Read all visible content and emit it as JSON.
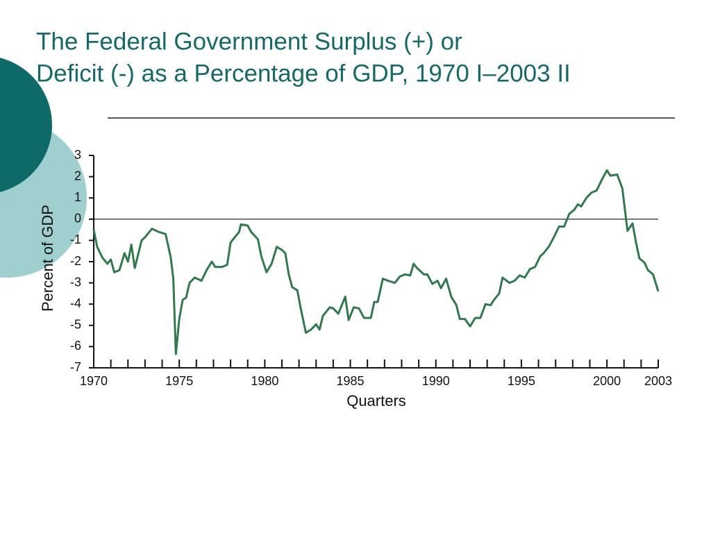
{
  "chart_data": {
    "type": "line",
    "title": [
      "The Federal Government Surplus (+) or",
      "Deficit (-) as a Percentage of GDP, 1970 I–2003 II"
    ],
    "ylabel": "Percent of GDP",
    "xlabel": "Quarters",
    "x": [
      1970,
      1970.2,
      1970.5,
      1970.8,
      1971,
      1971.2,
      1971.5,
      1971.8,
      1972,
      1972.2,
      1972.4,
      1972.8,
      1973,
      1973.4,
      1973.8,
      1974.2,
      1974.5,
      1974.65,
      1974.8,
      1975,
      1975.2,
      1975.4,
      1975.6,
      1975.9,
      1976.3,
      1976.6,
      1976.9,
      1977.1,
      1977.5,
      1977.8,
      1978,
      1978.2,
      1978.5,
      1978.6,
      1979,
      1979.2,
      1979.6,
      1979.8,
      1980.1,
      1980.4,
      1980.7,
      1981,
      1981.2,
      1981.4,
      1981.6,
      1981.9,
      1982.1,
      1982.4,
      1982.7,
      1983,
      1983.2,
      1983.4,
      1983.8,
      1984,
      1984.3,
      1984.7,
      1984.9,
      1985.2,
      1985.5,
      1985.8,
      1986.2,
      1986.4,
      1986.6,
      1986.9,
      1987.2,
      1987.6,
      1987.9,
      1988.2,
      1988.5,
      1988.7,
      1988.9,
      1989.3,
      1989.5,
      1989.8,
      1990.1,
      1990.3,
      1990.6,
      1990.9,
      1991.2,
      1991.4,
      1991.7,
      1992,
      1992.3,
      1992.6,
      1992.9,
      1993.2,
      1993.4,
      1993.7,
      1993.9,
      1994.3,
      1994.6,
      1994.9,
      1995.2,
      1995.5,
      1995.8,
      1996.1,
      1996.3,
      1996.6,
      1996.9,
      1997.2,
      1997.5,
      1997.8,
      1998.1,
      1998.3,
      1998.5,
      1998.8,
      1999.1,
      1999.4,
      1999.7,
      2000,
      2000.2,
      2000.6,
      2000.9,
      2001.2,
      2001.5,
      2001.7,
      2001.9,
      2002.2,
      2002.4,
      2002.7,
      2003
    ],
    "values": [
      -0.5,
      -1.3,
      -1.8,
      -2.1,
      -1.9,
      -2.5,
      -2.4,
      -1.6,
      -2.0,
      -1.2,
      -2.3,
      -1.0,
      -0.85,
      -0.45,
      -0.6,
      -0.7,
      -1.8,
      -2.8,
      -6.35,
      -4.7,
      -3.8,
      -3.7,
      -3.0,
      -2.75,
      -2.9,
      -2.4,
      -2.0,
      -2.25,
      -2.25,
      -2.15,
      -1.1,
      -0.9,
      -0.6,
      -0.25,
      -0.3,
      -0.6,
      -0.95,
      -1.75,
      -2.5,
      -2.1,
      -1.3,
      -1.45,
      -1.6,
      -2.6,
      -3.2,
      -3.35,
      -4.2,
      -5.35,
      -5.2,
      -4.95,
      -5.2,
      -4.55,
      -4.15,
      -4.2,
      -4.45,
      -3.65,
      -4.75,
      -4.15,
      -4.2,
      -4.65,
      -4.65,
      -3.9,
      -3.9,
      -2.8,
      -2.9,
      -3.0,
      -2.7,
      -2.6,
      -2.65,
      -2.1,
      -2.3,
      -2.6,
      -2.6,
      -3.05,
      -2.9,
      -3.25,
      -2.8,
      -3.65,
      -4.05,
      -4.7,
      -4.7,
      -5.05,
      -4.65,
      -4.65,
      -4.0,
      -4.05,
      -3.8,
      -3.5,
      -2.75,
      -3.0,
      -2.9,
      -2.65,
      -2.75,
      -2.35,
      -2.25,
      -1.75,
      -1.6,
      -1.3,
      -0.85,
      -0.35,
      -0.35,
      0.25,
      0.45,
      0.7,
      0.6,
      1.0,
      1.25,
      1.35,
      1.85,
      2.3,
      2.05,
      2.1,
      1.45,
      -0.55,
      -0.2,
      -1.1,
      -1.85,
      -2.05,
      -2.4,
      -2.6,
      -3.4
    ],
    "color": "#2f7a4c",
    "xlim": [
      1970,
      2003
    ],
    "xticks": [
      1970,
      1975,
      1980,
      1985,
      1990,
      1995,
      2000,
      2003
    ],
    "xminor_ticks": [
      1971,
      1972,
      1973,
      1974,
      1976,
      1977,
      1978,
      1979,
      1981,
      1982,
      1983,
      1984,
      1986,
      1987,
      1988,
      1989,
      1991,
      1992,
      1993,
      1994,
      1996,
      1997,
      1998,
      1999,
      2001,
      2002
    ],
    "ylim": [
      -7,
      3
    ],
    "yticks": [
      -7,
      -6,
      -5,
      -4,
      -3,
      -2,
      -1,
      0,
      1,
      2,
      3
    ],
    "hline": 0
  }
}
